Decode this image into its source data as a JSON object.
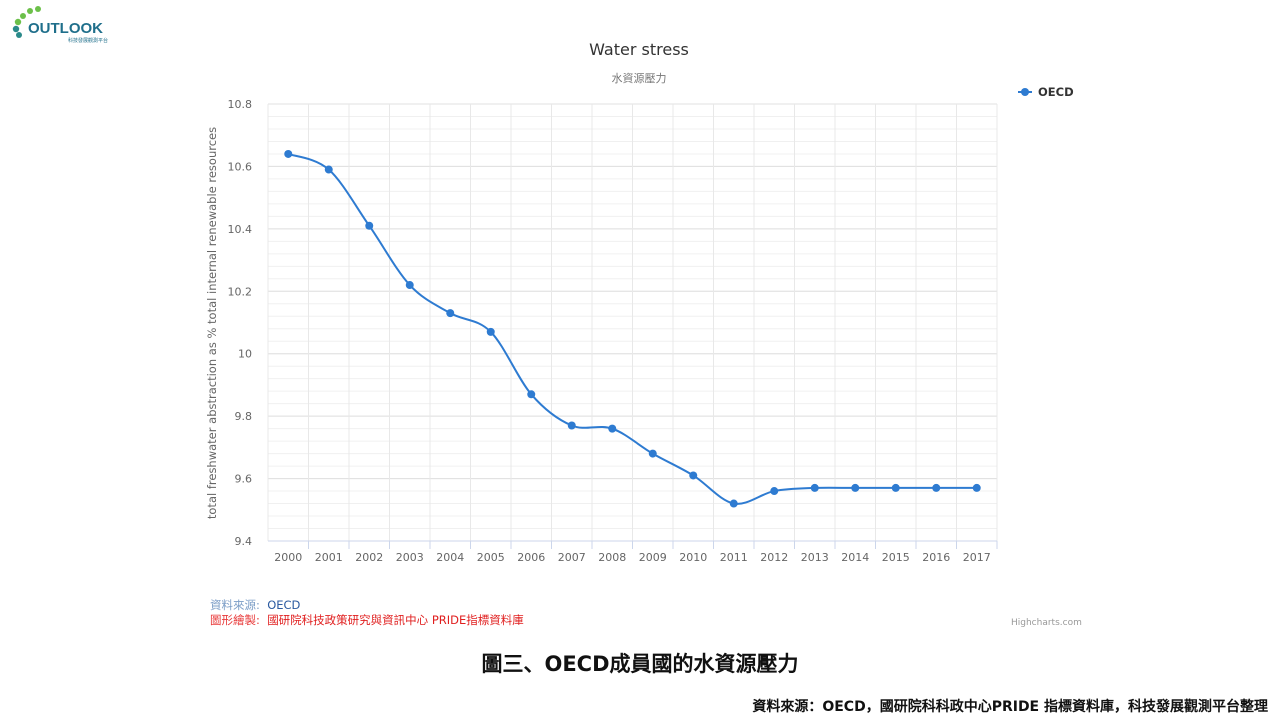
{
  "logo": {
    "text": "OUTLOOK",
    "subtext": "科技發展觀測平台"
  },
  "chart_data": {
    "type": "line",
    "title": "Water stress",
    "subtitle": "水資源壓力",
    "xlabel": "",
    "ylabel": "total freshwater abstraction as % total internal renewable resources",
    "categories": [
      "2000",
      "2001",
      "2002",
      "2003",
      "2004",
      "2005",
      "2006",
      "2007",
      "2008",
      "2009",
      "2010",
      "2011",
      "2012",
      "2013",
      "2014",
      "2015",
      "2016",
      "2017"
    ],
    "series": [
      {
        "name": "OECD",
        "color": "#2e7bd1",
        "values": [
          10.64,
          10.59,
          10.41,
          10.22,
          10.13,
          10.07,
          9.87,
          9.77,
          9.76,
          9.68,
          9.61,
          9.52,
          9.56,
          9.57,
          9.57,
          9.57,
          9.57,
          9.57
        ]
      }
    ],
    "ylim": [
      9.4,
      10.8
    ],
    "yticks": [
      "9.4",
      "9.6",
      "9.8",
      "10",
      "10.2",
      "10.4",
      "10.6",
      "10.8"
    ],
    "grid": true,
    "legend": "top-right"
  },
  "source": {
    "label": "資料來源:",
    "value": "OECD"
  },
  "drawn": {
    "label": "圖形繪製:",
    "value": "國研院科技政策研究與資訊中心 PRIDE指標資料庫"
  },
  "credit": "Highcharts.com",
  "caption": "圖三、OECD成員國的水資源壓力",
  "footer": "資料來源：OECD，國研院科科政中心PRIDE 指標資料庫，科技發展觀測平台整理"
}
